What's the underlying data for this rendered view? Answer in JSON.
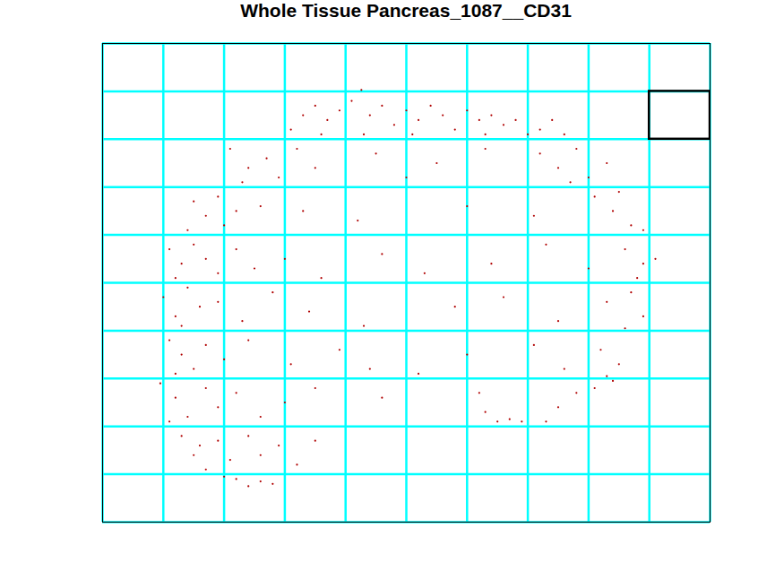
{
  "chart_data": {
    "type": "scatter",
    "title": "Whole Tissue Pancreas_1087__CD31",
    "xlim": [
      0,
      10
    ],
    "ylim": [
      10,
      0
    ],
    "xticks": [
      0,
      1,
      2,
      3,
      4,
      5,
      6,
      7,
      8,
      9,
      10
    ],
    "yticks": [
      0,
      1,
      2,
      3,
      4,
      5,
      6,
      7,
      8,
      9,
      10
    ],
    "grid": true,
    "tick_labels": false,
    "color": "#b00000",
    "marker": "dot",
    "highlight": {
      "x": [
        9,
        10
      ],
      "y": [
        1,
        2
      ]
    },
    "points": [
      [
        3.1,
        1.8
      ],
      [
        3.3,
        1.5
      ],
      [
        3.5,
        1.3
      ],
      [
        3.7,
        1.6
      ],
      [
        3.9,
        1.4
      ],
      [
        4.1,
        1.2
      ],
      [
        4.26,
        0.97
      ],
      [
        4.4,
        1.5
      ],
      [
        4.6,
        1.3
      ],
      [
        4.8,
        1.7
      ],
      [
        5.0,
        1.4
      ],
      [
        5.2,
        1.6
      ],
      [
        5.4,
        1.3
      ],
      [
        5.6,
        1.5
      ],
      [
        5.8,
        1.8
      ],
      [
        6.0,
        1.4
      ],
      [
        6.2,
        1.6
      ],
      [
        6.4,
        1.5
      ],
      [
        6.6,
        1.7
      ],
      [
        6.8,
        1.6
      ],
      [
        7.0,
        1.9
      ],
      [
        7.2,
        1.8
      ],
      [
        7.4,
        1.6
      ],
      [
        7.6,
        1.9
      ],
      [
        3.6,
        1.9
      ],
      [
        4.3,
        1.9
      ],
      [
        5.1,
        1.9
      ],
      [
        6.3,
        1.9
      ],
      [
        2.1,
        2.2
      ],
      [
        2.4,
        2.6
      ],
      [
        2.7,
        2.4
      ],
      [
        2.9,
        2.8
      ],
      [
        3.2,
        2.2
      ],
      [
        3.5,
        2.6
      ],
      [
        2.3,
        2.9
      ],
      [
        7.2,
        2.3
      ],
      [
        7.5,
        2.6
      ],
      [
        7.8,
        2.2
      ],
      [
        8.0,
        2.8
      ],
      [
        7.7,
        2.9
      ],
      [
        8.3,
        2.5
      ],
      [
        4.5,
        2.3
      ],
      [
        5.5,
        2.5
      ],
      [
        6.3,
        2.2
      ],
      [
        5.0,
        2.8
      ],
      [
        1.5,
        3.3
      ],
      [
        1.7,
        3.6
      ],
      [
        1.9,
        3.2
      ],
      [
        2.2,
        3.5
      ],
      [
        1.4,
        3.9
      ],
      [
        2.0,
        3.8
      ],
      [
        2.6,
        3.4
      ],
      [
        3.3,
        3.5
      ],
      [
        4.2,
        3.7
      ],
      [
        6.0,
        3.4
      ],
      [
        7.1,
        3.6
      ],
      [
        8.1,
        3.2
      ],
      [
        8.4,
        3.5
      ],
      [
        8.7,
        3.8
      ],
      [
        8.5,
        3.1
      ],
      [
        8.9,
        3.9
      ],
      [
        1.1,
        4.3
      ],
      [
        1.3,
        4.6
      ],
      [
        1.5,
        4.2
      ],
      [
        1.2,
        4.9
      ],
      [
        1.7,
        4.5
      ],
      [
        1.9,
        4.8
      ],
      [
        2.2,
        4.3
      ],
      [
        2.5,
        4.7
      ],
      [
        3.0,
        4.5
      ],
      [
        3.6,
        4.9
      ],
      [
        4.6,
        4.4
      ],
      [
        5.3,
        4.8
      ],
      [
        6.4,
        4.6
      ],
      [
        7.3,
        4.2
      ],
      [
        8.0,
        4.7
      ],
      [
        8.6,
        4.3
      ],
      [
        8.9,
        4.6
      ],
      [
        9.1,
        4.5
      ],
      [
        8.8,
        4.9
      ],
      [
        1.0,
        5.3
      ],
      [
        1.2,
        5.7
      ],
      [
        1.4,
        5.1
      ],
      [
        1.6,
        5.5
      ],
      [
        1.3,
        5.9
      ],
      [
        1.9,
        5.4
      ],
      [
        2.3,
        5.8
      ],
      [
        2.8,
        5.2
      ],
      [
        3.4,
        5.6
      ],
      [
        4.3,
        5.9
      ],
      [
        5.8,
        5.5
      ],
      [
        6.6,
        5.3
      ],
      [
        7.5,
        5.8
      ],
      [
        8.3,
        5.4
      ],
      [
        8.7,
        5.2
      ],
      [
        8.9,
        5.7
      ],
      [
        8.6,
        5.95
      ],
      [
        1.1,
        6.2
      ],
      [
        1.3,
        6.5
      ],
      [
        1.5,
        6.8
      ],
      [
        1.2,
        6.9
      ],
      [
        1.7,
        6.3
      ],
      [
        2.0,
        6.6
      ],
      [
        2.4,
        6.2
      ],
      [
        3.1,
        6.7
      ],
      [
        3.9,
        6.4
      ],
      [
        4.4,
        6.8
      ],
      [
        5.2,
        6.9
      ],
      [
        6.0,
        6.5
      ],
      [
        7.1,
        6.3
      ],
      [
        7.6,
        6.8
      ],
      [
        8.2,
        6.4
      ],
      [
        8.5,
        6.7
      ],
      [
        8.3,
        6.95
      ],
      [
        0.95,
        7.1
      ],
      [
        1.2,
        7.4
      ],
      [
        1.4,
        7.8
      ],
      [
        1.1,
        7.9
      ],
      [
        1.7,
        7.2
      ],
      [
        1.9,
        7.6
      ],
      [
        2.2,
        7.3
      ],
      [
        2.6,
        7.8
      ],
      [
        3.0,
        7.5
      ],
      [
        3.5,
        7.2
      ],
      [
        4.6,
        7.4
      ],
      [
        6.3,
        7.7
      ],
      [
        6.5,
        7.9
      ],
      [
        6.7,
        7.85
      ],
      [
        6.9,
        7.9
      ],
      [
        6.2,
        7.3
      ],
      [
        7.5,
        7.6
      ],
      [
        7.8,
        7.3
      ],
      [
        8.1,
        7.2
      ],
      [
        8.4,
        7.05
      ],
      [
        7.3,
        7.9
      ],
      [
        1.3,
        8.2
      ],
      [
        1.5,
        8.6
      ],
      [
        1.7,
        8.9
      ],
      [
        1.9,
        8.3
      ],
      [
        2.1,
        8.7
      ],
      [
        2.4,
        8.2
      ],
      [
        2.6,
        8.6
      ],
      [
        2.9,
        8.4
      ],
      [
        3.2,
        8.8
      ],
      [
        3.5,
        8.3
      ],
      [
        1.6,
        8.4
      ],
      [
        2.2,
        9.1
      ],
      [
        2.4,
        9.25
      ],
      [
        2.6,
        9.15
      ],
      [
        2.8,
        9.2
      ],
      [
        2.0,
        9.05
      ]
    ]
  }
}
